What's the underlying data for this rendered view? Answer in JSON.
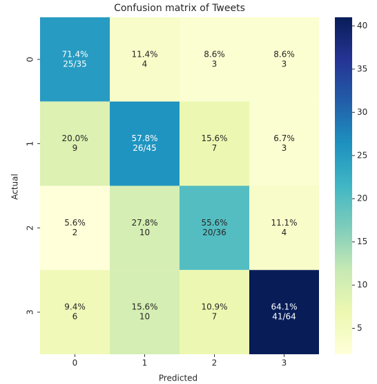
{
  "chart_data": {
    "type": "heatmap",
    "title": "Confusion matrix of Tweets",
    "xlabel": "Predicted",
    "ylabel": "Actual",
    "x_categories": [
      "0",
      "1",
      "2",
      "3"
    ],
    "y_categories": [
      "0",
      "1",
      "2",
      "3"
    ],
    "values": [
      [
        25,
        4,
        3,
        3
      ],
      [
        9,
        26,
        7,
        3
      ],
      [
        2,
        10,
        20,
        4
      ],
      [
        6,
        10,
        7,
        41
      ]
    ],
    "value_labels": [
      [
        "25/35",
        "4",
        "3",
        "3"
      ],
      [
        "9",
        "26/45",
        "7",
        "3"
      ],
      [
        "2",
        "10",
        "20/36",
        "4"
      ],
      [
        "6",
        "10",
        "7",
        "41/64"
      ]
    ],
    "percent_labels": [
      [
        "71.4%",
        "11.4%",
        "8.6%",
        "8.6%"
      ],
      [
        "20.0%",
        "57.8%",
        "15.6%",
        "6.7%"
      ],
      [
        "5.6%",
        "27.8%",
        "55.6%",
        "11.1%"
      ],
      [
        "9.4%",
        "15.6%",
        "10.9%",
        "64.1%"
      ]
    ],
    "clim": [
      2,
      41
    ],
    "cticks": [
      5,
      10,
      15,
      20,
      25,
      30,
      35,
      40
    ],
    "colormap": [
      "#ffffd9",
      "#edf8b1",
      "#c7e9b4",
      "#7fcdbb",
      "#41b6c4",
      "#1d91c0",
      "#225ea8",
      "#253494",
      "#081d58"
    ]
  }
}
